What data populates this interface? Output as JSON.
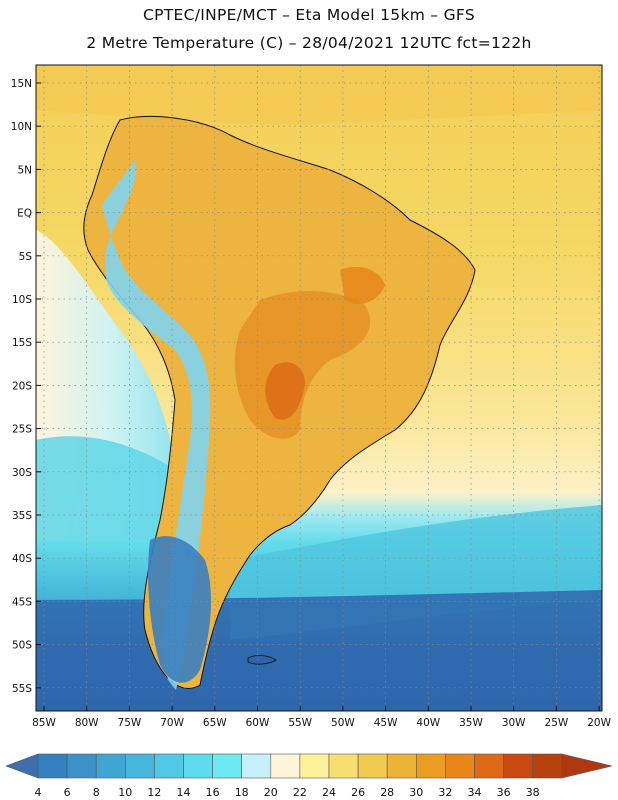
{
  "header": {
    "title_line1": "CPTEC/INPE/MCT –  Eta Model 15km – GFS",
    "title_line2": "2 Metre Temperature (C) – 28/04/2021 12UTC fct=122h"
  },
  "map": {
    "lat_labels": [
      "15N",
      "10N",
      "5N",
      "EQ",
      "5S",
      "10S",
      "15S",
      "20S",
      "25S",
      "30S",
      "35S",
      "40S",
      "45S",
      "50S",
      "55S"
    ],
    "lon_labels": [
      "85W",
      "80W",
      "75W",
      "70W",
      "65W",
      "60W",
      "55W",
      "50W",
      "45W",
      "40W",
      "35W",
      "30W",
      "25W",
      "20W"
    ],
    "colors": {
      "ocean_tropical": "#f6d865",
      "ocean_subtropical": "#fde99a",
      "ocean_mid": "#63dcea",
      "ocean_cold": "#45b8d8",
      "ocean_south": "#2f72b8",
      "land_warm": "#eeb440",
      "land_hot": "#e59425",
      "andes": "#7fd4ee",
      "patagonia": "#3a7fc0",
      "coast_line": "#111111"
    }
  },
  "legend": {
    "values": [
      "4",
      "6",
      "8",
      "10",
      "12",
      "14",
      "16",
      "18",
      "20",
      "22",
      "24",
      "26",
      "28",
      "30",
      "32",
      "34",
      "36",
      "38"
    ],
    "colors": [
      "#3e6fac",
      "#3580c0",
      "#3a92c8",
      "#3fa6d2",
      "#48b6dc",
      "#52c8e4",
      "#5ddaec",
      "#6ee9f2",
      "#c7f1fa",
      "#fff4d8",
      "#fdf19a",
      "#f8df74",
      "#f1ca52",
      "#ecb437",
      "#ea9d20",
      "#e8861b",
      "#dd6a16",
      "#c94a10",
      "#b8420e",
      "#b03810"
    ]
  }
}
